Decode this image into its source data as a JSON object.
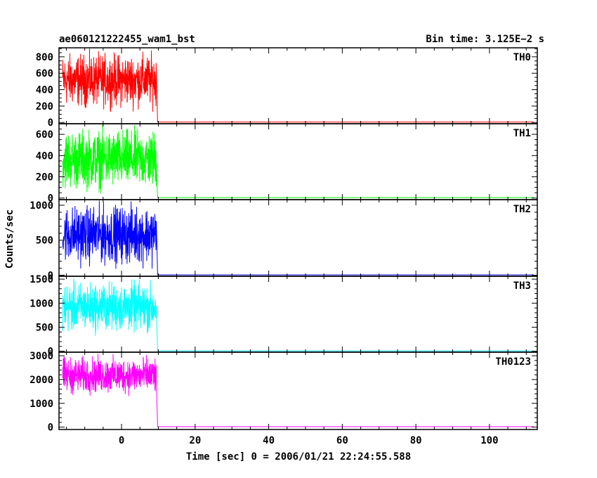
{
  "header": {
    "title": "ae060121222455_wam1_bst",
    "bin_time": "Bin time: 3.125E−2 s"
  },
  "axes": {
    "xlabel": "Time [sec] 0 = 2006/01/21 22:24:55.588",
    "ylabel": "Counts/sec"
  },
  "chart_data": {
    "type": "line",
    "x_range": [
      -17,
      113
    ],
    "x_ticks": [
      0,
      20,
      40,
      60,
      80,
      100
    ],
    "x_minor_step": 5,
    "burst_interval": [
      -16,
      9.5
    ],
    "panels": [
      {
        "name": "TH0",
        "color": "#ff0000",
        "ylim": [
          -15,
          910
        ],
        "y_ticks": [
          0,
          200,
          400,
          600,
          800
        ],
        "y_minor_step": 50,
        "burst_level": [
          130,
          900
        ],
        "quiescent_level": 5
      },
      {
        "name": "TH1",
        "color": "#00ff00",
        "ylim": [
          -15,
          700
        ],
        "y_ticks": [
          0,
          200,
          400,
          600
        ],
        "y_minor_step": 50,
        "burst_level": [
          30,
          700
        ],
        "quiescent_level": 5
      },
      {
        "name": "TH2",
        "color": "#0000ff",
        "ylim": [
          -15,
          1080
        ],
        "y_ticks": [
          0,
          500,
          1000
        ],
        "y_minor_step": 100,
        "burst_level": [
          80,
          1080
        ],
        "quiescent_level": 5
      },
      {
        "name": "TH3",
        "color": "#00ffff",
        "ylim": [
          -20,
          1560
        ],
        "y_ticks": [
          0,
          500,
          1000,
          1500
        ],
        "y_minor_step": 100,
        "burst_level": [
          300,
          1540
        ],
        "quiescent_level": 5
      },
      {
        "name": "TH0123",
        "color": "#ff00ff",
        "ylim": [
          -100,
          3150
        ],
        "y_ticks": [
          0,
          1000,
          2000,
          3000
        ],
        "y_minor_step": 200,
        "burst_level": [
          1250,
          3100
        ],
        "quiescent_level": 20
      }
    ]
  }
}
